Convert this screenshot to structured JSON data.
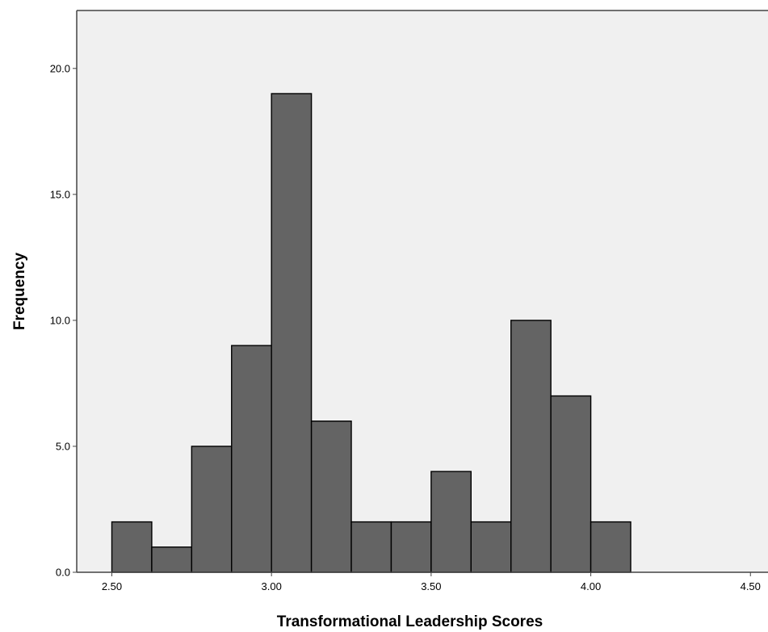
{
  "chart_data": {
    "type": "bar",
    "title": "",
    "xlabel": "Transformational Leadership Scores",
    "ylabel": "Frequency",
    "bin_width": 0.125,
    "bins": [
      {
        "start": 2.5,
        "end": 2.625,
        "value": 2
      },
      {
        "start": 2.625,
        "end": 2.75,
        "value": 1
      },
      {
        "start": 2.75,
        "end": 2.875,
        "value": 5
      },
      {
        "start": 2.875,
        "end": 3.0,
        "value": 9
      },
      {
        "start": 3.0,
        "end": 3.125,
        "value": 19
      },
      {
        "start": 3.125,
        "end": 3.25,
        "value": 6
      },
      {
        "start": 3.25,
        "end": 3.375,
        "value": 2
      },
      {
        "start": 3.375,
        "end": 3.5,
        "value": 2
      },
      {
        "start": 3.5,
        "end": 3.625,
        "value": 4
      },
      {
        "start": 3.625,
        "end": 3.75,
        "value": 2
      },
      {
        "start": 3.75,
        "end": 3.875,
        "value": 10
      },
      {
        "start": 3.875,
        "end": 4.0,
        "value": 7
      },
      {
        "start": 4.0,
        "end": 4.125,
        "value": 2
      }
    ],
    "xlim": [
      2.39,
      4.555
    ],
    "ylim": [
      0,
      22.3
    ],
    "xticks": [
      {
        "value": 2.5,
        "label": "2.50"
      },
      {
        "value": 3.0,
        "label": "3.00"
      },
      {
        "value": 3.5,
        "label": "3.50"
      },
      {
        "value": 4.0,
        "label": "4.00"
      },
      {
        "value": 4.5,
        "label": "4.50"
      }
    ],
    "yticks": [
      {
        "value": 0,
        "label": "0.0"
      },
      {
        "value": 5,
        "label": "5.0"
      },
      {
        "value": 10,
        "label": "10.0"
      },
      {
        "value": 15,
        "label": "15.0"
      },
      {
        "value": 20,
        "label": "20.0"
      }
    ],
    "grid": false,
    "legend": "none",
    "colors": {
      "bar_fill": "#646464",
      "bar_stroke": "#000000",
      "plot_background": "#f0f0f0",
      "axis": "#444444"
    }
  }
}
